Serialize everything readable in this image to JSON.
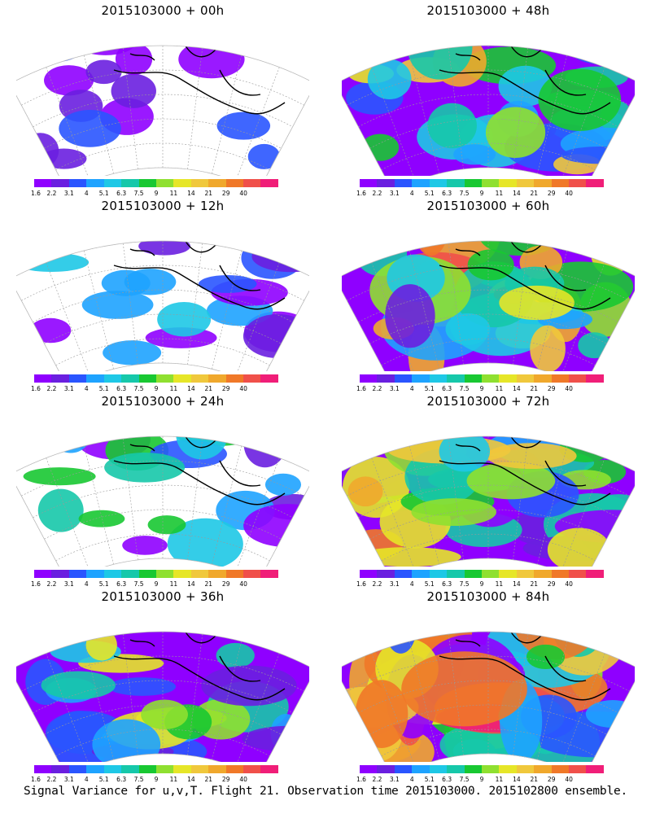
{
  "colorbar": {
    "colors": [
      "#8f00ff",
      "#6a1fe0",
      "#2a55ff",
      "#1ea3ff",
      "#1ec8e6",
      "#16c8aa",
      "#18c832",
      "#8fe030",
      "#e6e628",
      "#f0c83c",
      "#f0a82c",
      "#f07828",
      "#f0504a",
      "#f01e78"
    ],
    "labels": [
      "1.6",
      "2.2",
      "3.1",
      "4",
      "5.1",
      "6.3",
      "7.5",
      "9",
      "11",
      "14",
      "21",
      "29",
      "40"
    ]
  },
  "panels": [
    {
      "title": "2015103000 + 00h",
      "level": 0
    },
    {
      "title": "2015103000 + 48h",
      "level": 4
    },
    {
      "title": "2015103000 + 12h",
      "level": 1
    },
    {
      "title": "2015103000 + 60h",
      "level": 5
    },
    {
      "title": "2015103000 + 24h",
      "level": 2
    },
    {
      "title": "2015103000 + 72h",
      "level": 6
    },
    {
      "title": "2015103000 + 36h",
      "level": 3
    },
    {
      "title": "2015103000 + 84h",
      "level": 7
    }
  ],
  "caption": "Signal Variance for u,v,T. Flight 21. Observation time 2015103000. 2015102800 ensemble."
}
